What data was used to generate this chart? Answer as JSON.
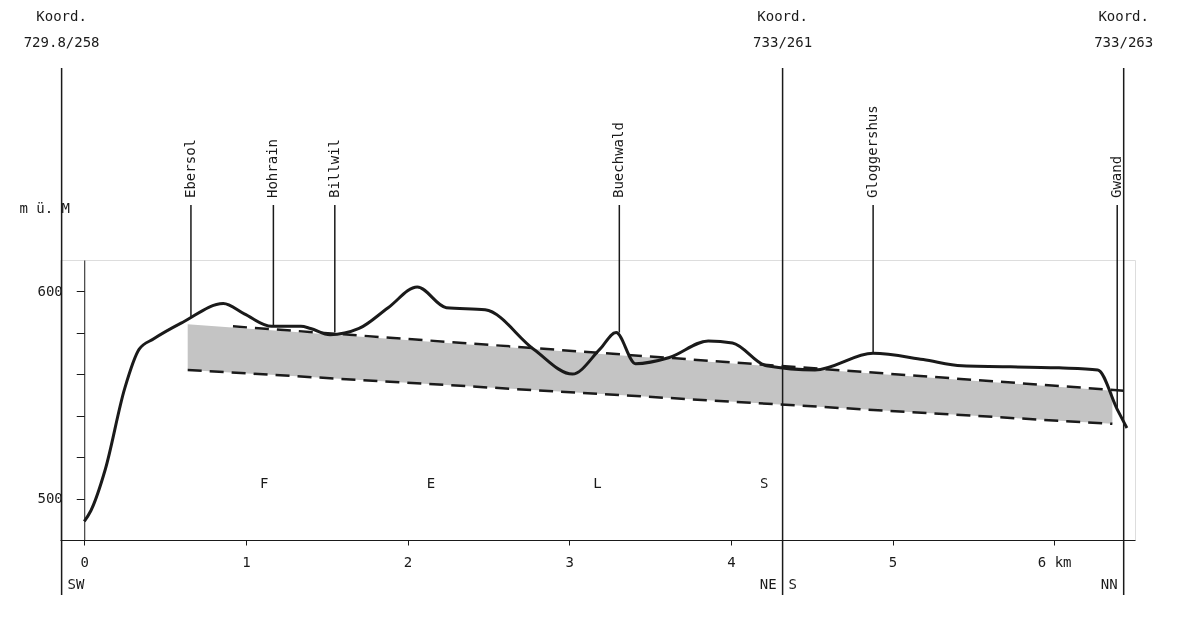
{
  "chart_data": {
    "type": "line",
    "ylabel": "m ü. M",
    "xlim": [
      -0.15,
      6.5
    ],
    "ylim": [
      480,
      615
    ],
    "xticks": [
      0,
      1,
      2,
      3,
      4,
      5,
      {
        "value": 6,
        "label": "6 km"
      }
    ],
    "yticks": [
      500,
      {
        "value": 520,
        "label": null
      },
      {
        "value": 540,
        "label": null
      },
      {
        "value": 560,
        "label": null
      },
      {
        "value": 580,
        "label": null
      },
      600
    ],
    "series": [
      {
        "color": "#1a1a1a",
        "line_style": "solid",
        "x": [
          0,
          0.04,
          0.13,
          0.25,
          0.34,
          0.43,
          0.61,
          0.86,
          0.99,
          1.16,
          1.34,
          1.4,
          1.52,
          1.7,
          1.88,
          2.06,
          2.24,
          2.48,
          2.78,
          3.02,
          3.19,
          3.29,
          3.41,
          3.62,
          3.86,
          4.01,
          4.22,
          4.52,
          4.88,
          5.19,
          5.43,
          6.03,
          6.27,
          6.39,
          6.45
        ],
        "values": [
          489,
          494,
          514,
          553,
          572,
          577,
          585,
          594,
          589,
          583,
          583,
          582,
          579,
          582,
          592,
          602,
          592,
          591,
          572,
          560,
          572,
          580,
          565,
          568,
          576,
          575,
          564,
          562,
          570,
          567,
          564,
          563,
          562,
          543,
          534
        ]
      },
      {
        "color": "#1a1a1a",
        "line_style": "dashed",
        "x": [
          0.92,
          6.43
        ],
        "values": [
          583,
          552
        ]
      },
      {
        "color": "#1a1a1a",
        "line_style": "dashed",
        "x": [
          0.64,
          6.36
        ],
        "values": [
          562,
          536
        ],
        "lower": [
          562,
          536
        ],
        "upper": [
          584,
          552
        ]
      }
    ],
    "ref_lines": [
      {
        "axis": "x",
        "value": -0.14,
        "label": "Koord.\n729.8/258"
      },
      {
        "axis": "x",
        "value": 4.32,
        "label": "Koord.\n733/261"
      },
      {
        "axis": "x",
        "value": 6.43,
        "label": "Koord.\n733/263"
      }
    ],
    "annotations": [
      {
        "text": "Ebersol",
        "x": 0.66,
        "y": 587
      },
      {
        "text": "Hohrain",
        "x": 1.17,
        "y": 583
      },
      {
        "text": "Billwil",
        "x": 1.55,
        "y": 580
      },
      {
        "text": "Buechwald",
        "x": 3.31,
        "y": 580
      },
      {
        "text": "Gloggershus",
        "x": 4.88,
        "y": 570
      },
      {
        "text": "Gwand",
        "x": 6.39,
        "y": 543
      },
      "F E L S",
      "SW",
      "NE",
      "S",
      "NN"
    ]
  }
}
